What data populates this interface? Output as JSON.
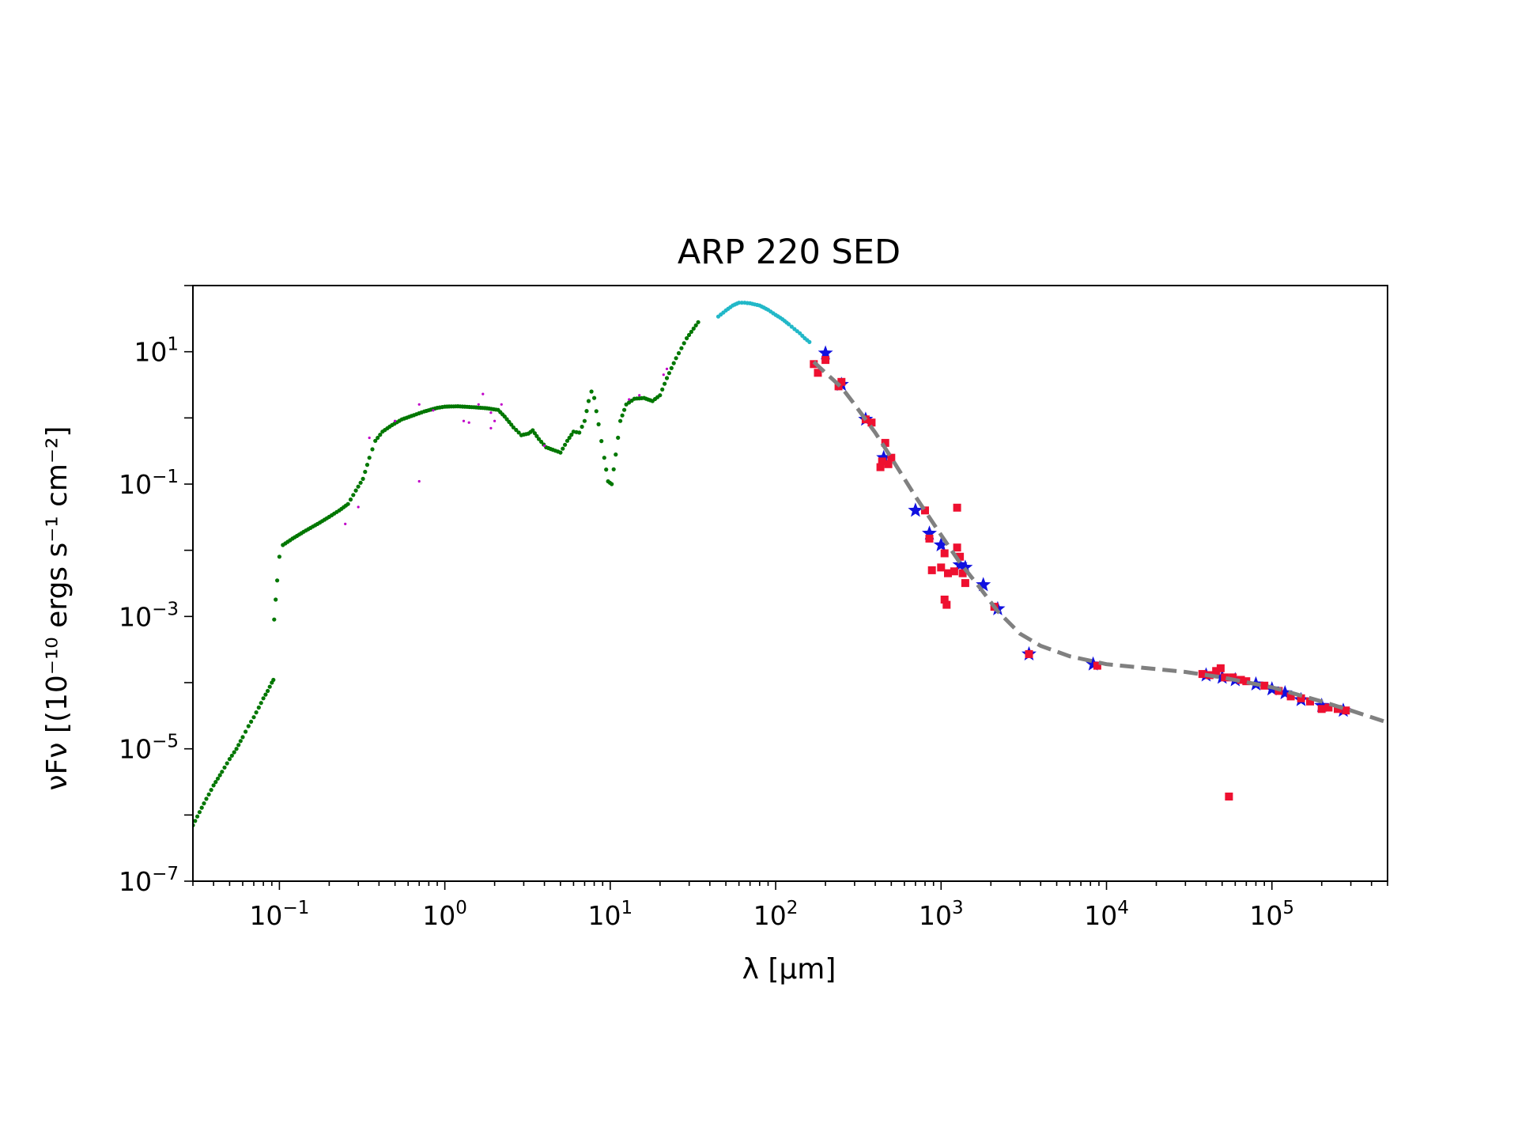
{
  "chart_data": {
    "type": "scatter",
    "title": "ARP 220 SED",
    "xlabel": "λ [μm]",
    "ylabel": "νFν [(10⁻¹⁰ ergs s⁻¹ cm⁻²]",
    "xscale": "log",
    "yscale": "log",
    "xlim": [
      0.03,
      500000
    ],
    "ylim": [
      1e-07,
      100
    ],
    "x_ticks": [
      {
        "value": 0.1,
        "base": "10",
        "exp": "−1"
      },
      {
        "value": 1,
        "base": "10",
        "exp": "0"
      },
      {
        "value": 10,
        "base": "10",
        "exp": "1"
      },
      {
        "value": 100,
        "base": "10",
        "exp": "2"
      },
      {
        "value": 1000,
        "base": "10",
        "exp": "3"
      },
      {
        "value": 10000,
        "base": "10",
        "exp": "4"
      },
      {
        "value": 100000,
        "base": "10",
        "exp": "5"
      }
    ],
    "y_ticks": [
      {
        "value": 1e-07,
        "base": "10",
        "exp": "−7"
      },
      {
        "value": 1e-05,
        "base": "10",
        "exp": "−5"
      },
      {
        "value": 0.001,
        "base": "10",
        "exp": "−3"
      },
      {
        "value": 0.1,
        "base": "10",
        "exp": "−1"
      },
      {
        "value": 10,
        "base": "10",
        "exp": "1"
      }
    ],
    "grid": false,
    "legend": "none",
    "series": [
      {
        "color": "#007700",
        "marker": "dot",
        "style": "dense",
        "points": [
          [
            0.03,
            7e-07
          ],
          [
            0.035,
            1.5e-06
          ],
          [
            0.04,
            2.8e-06
          ],
          [
            0.045,
            4.5e-06
          ],
          [
            0.05,
            7e-06
          ],
          [
            0.055,
            1e-05
          ],
          [
            0.06,
            1.5e-05
          ],
          [
            0.065,
            2.2e-05
          ],
          [
            0.07,
            3e-05
          ],
          [
            0.075,
            4.2e-05
          ],
          [
            0.08,
            5.8e-05
          ],
          [
            0.085,
            7.5e-05
          ],
          [
            0.09,
            0.0001
          ],
          [
            0.092,
            0.00011
          ],
          [
            0.093,
            0.0009
          ],
          [
            0.095,
            0.0018
          ],
          [
            0.097,
            0.0035
          ],
          [
            0.1,
            0.008
          ],
          [
            0.105,
            0.012
          ],
          [
            0.12,
            0.015
          ],
          [
            0.14,
            0.019
          ],
          [
            0.17,
            0.025
          ],
          [
            0.2,
            0.032
          ],
          [
            0.23,
            0.04
          ],
          [
            0.26,
            0.05
          ],
          [
            0.29,
            0.08
          ],
          [
            0.32,
            0.12
          ],
          [
            0.35,
            0.25
          ],
          [
            0.38,
            0.45
          ],
          [
            0.42,
            0.62
          ],
          [
            0.48,
            0.78
          ],
          [
            0.55,
            0.95
          ],
          [
            0.65,
            1.1
          ],
          [
            0.75,
            1.25
          ],
          [
            0.9,
            1.42
          ],
          [
            1.0,
            1.48
          ],
          [
            1.2,
            1.5
          ],
          [
            1.5,
            1.45
          ],
          [
            1.8,
            1.4
          ],
          [
            2.1,
            1.32
          ],
          [
            2.3,
            1.05
          ],
          [
            2.6,
            0.72
          ],
          [
            2.9,
            0.55
          ],
          [
            3.2,
            0.58
          ],
          [
            3.4,
            0.65
          ],
          [
            3.7,
            0.48
          ],
          [
            4.1,
            0.36
          ],
          [
            4.5,
            0.33
          ],
          [
            5.0,
            0.3
          ],
          [
            5.5,
            0.45
          ],
          [
            6.0,
            0.62
          ],
          [
            6.5,
            0.6
          ],
          [
            7.0,
            0.9
          ],
          [
            7.4,
            1.8
          ],
          [
            7.7,
            2.5
          ],
          [
            8.0,
            2.0
          ],
          [
            8.5,
            0.8
          ],
          [
            9.2,
            0.25
          ],
          [
            9.7,
            0.11
          ],
          [
            10.2,
            0.1
          ],
          [
            10.8,
            0.28
          ],
          [
            11.5,
            0.9
          ],
          [
            12.5,
            1.6
          ],
          [
            14.0,
            1.95
          ],
          [
            16.0,
            2.0
          ],
          [
            18.0,
            1.8
          ],
          [
            20.0,
            2.2
          ],
          [
            22.0,
            4.0
          ],
          [
            25.0,
            8.0
          ],
          [
            29.0,
            16.0
          ],
          [
            34.0,
            28.0
          ]
        ]
      },
      {
        "color": "#c000c8",
        "marker": "dot-small",
        "style": "scattered",
        "points": [
          [
            0.3,
            0.045
          ],
          [
            0.35,
            0.5
          ],
          [
            0.5,
            0.9
          ],
          [
            0.7,
            1.6
          ],
          [
            0.85,
            1.3
          ],
          [
            0.7,
            0.11
          ],
          [
            0.25,
            0.025
          ],
          [
            1.3,
            0.9
          ],
          [
            1.4,
            0.85
          ],
          [
            1.6,
            1.6
          ],
          [
            1.7,
            2.3
          ],
          [
            1.9,
            1.2
          ],
          [
            2.2,
            1.6
          ],
          [
            2.0,
            0.9
          ],
          [
            1.9,
            0.7
          ],
          [
            4.0,
            0.38
          ],
          [
            13.0,
            1.9
          ],
          [
            15.0,
            2.2
          ],
          [
            22.0,
            5.5
          ],
          [
            21.0,
            4.5
          ]
        ]
      },
      {
        "color": "#22b8c8",
        "marker": "dot",
        "style": "dense",
        "points": [
          [
            45,
            34
          ],
          [
            50,
            42
          ],
          [
            55,
            50
          ],
          [
            60,
            55
          ],
          [
            65,
            55
          ],
          [
            70,
            54
          ],
          [
            80,
            50
          ],
          [
            90,
            43
          ],
          [
            100,
            36
          ],
          [
            110,
            31
          ],
          [
            120,
            26
          ],
          [
            130,
            22
          ],
          [
            140,
            19
          ],
          [
            150,
            16
          ],
          [
            160,
            14
          ]
        ]
      },
      {
        "color": "#1010e0",
        "marker": "star",
        "style": "points",
        "points": [
          [
            200,
            9.5
          ],
          [
            250,
            3.2
          ],
          [
            350,
            0.95
          ],
          [
            450,
            0.25
          ],
          [
            700,
            0.04
          ],
          [
            850,
            0.018
          ],
          [
            1000,
            0.012
          ],
          [
            1300,
            0.006
          ],
          [
            1400,
            0.0055
          ],
          [
            1800,
            0.003
          ],
          [
            2200,
            0.0013
          ],
          [
            3400,
            0.00027
          ],
          [
            8300,
            0.00019
          ],
          [
            40000,
            0.00013
          ],
          [
            50000,
            0.00012
          ],
          [
            60000,
            0.00011
          ],
          [
            80000,
            9.5e-05
          ],
          [
            100000,
            8e-05
          ],
          [
            120000,
            7e-05
          ],
          [
            150000,
            5.5e-05
          ],
          [
            200000,
            4.5e-05
          ],
          [
            270000,
            3.8e-05
          ]
        ]
      },
      {
        "color": "#ee1030",
        "marker": "square",
        "style": "points",
        "points": [
          [
            170,
            6.5
          ],
          [
            180,
            4.8
          ],
          [
            200,
            7.5
          ],
          [
            240,
            3.0
          ],
          [
            250,
            3.5
          ],
          [
            350,
            0.95
          ],
          [
            380,
            0.85
          ],
          [
            430,
            0.18
          ],
          [
            440,
            0.22
          ],
          [
            460,
            0.42
          ],
          [
            500,
            0.25
          ],
          [
            480,
            0.2
          ],
          [
            800,
            0.04
          ],
          [
            850,
            0.015
          ],
          [
            880,
            0.005
          ],
          [
            1000,
            0.0055
          ],
          [
            1050,
            0.009
          ],
          [
            1100,
            0.0045
          ],
          [
            1050,
            0.0018
          ],
          [
            1080,
            0.0015
          ],
          [
            1250,
            0.044
          ],
          [
            1250,
            0.011
          ],
          [
            1300,
            0.008
          ],
          [
            1350,
            0.0045
          ],
          [
            1400,
            0.0032
          ],
          [
            1200,
            0.0048
          ],
          [
            2100,
            0.0014
          ],
          [
            3400,
            0.00027
          ],
          [
            8800,
            0.00018
          ],
          [
            38000,
            0.000135
          ],
          [
            42000,
            0.00013
          ],
          [
            46000,
            0.00015
          ],
          [
            49000,
            0.000165
          ],
          [
            52000,
            0.00012
          ],
          [
            55000,
            1.9e-06
          ],
          [
            58000,
            0.00012
          ],
          [
            65000,
            0.00011
          ],
          [
            70000,
            0.000105
          ],
          [
            90000,
            9e-05
          ],
          [
            110000,
            7.5e-05
          ],
          [
            130000,
            6.2e-05
          ],
          [
            150000,
            5.8e-05
          ],
          [
            170000,
            5.2e-05
          ],
          [
            200000,
            4e-05
          ],
          [
            220000,
            4.2e-05
          ],
          [
            250000,
            4e-05
          ],
          [
            280000,
            3.8e-05
          ]
        ]
      },
      {
        "color": "#808080",
        "marker": "none",
        "style": "dashed-line",
        "points": [
          [
            170,
            7.0
          ],
          [
            200,
            4.8
          ],
          [
            250,
            2.9
          ],
          [
            300,
            1.6
          ],
          [
            400,
            0.6
          ],
          [
            500,
            0.25
          ],
          [
            700,
            0.065
          ],
          [
            1000,
            0.017
          ],
          [
            1300,
            0.0065
          ],
          [
            1700,
            0.0028
          ],
          [
            2200,
            0.0012
          ],
          [
            3000,
            0.00055
          ],
          [
            4000,
            0.00036
          ],
          [
            6000,
            0.00025
          ],
          [
            10000,
            0.00019
          ],
          [
            30000,
            0.000145
          ],
          [
            50000,
            0.00012
          ],
          [
            100000,
            8.5e-05
          ],
          [
            200000,
            5.2e-05
          ],
          [
            300000,
            3.8e-05
          ],
          [
            500000,
            2.5e-05
          ]
        ]
      }
    ]
  }
}
